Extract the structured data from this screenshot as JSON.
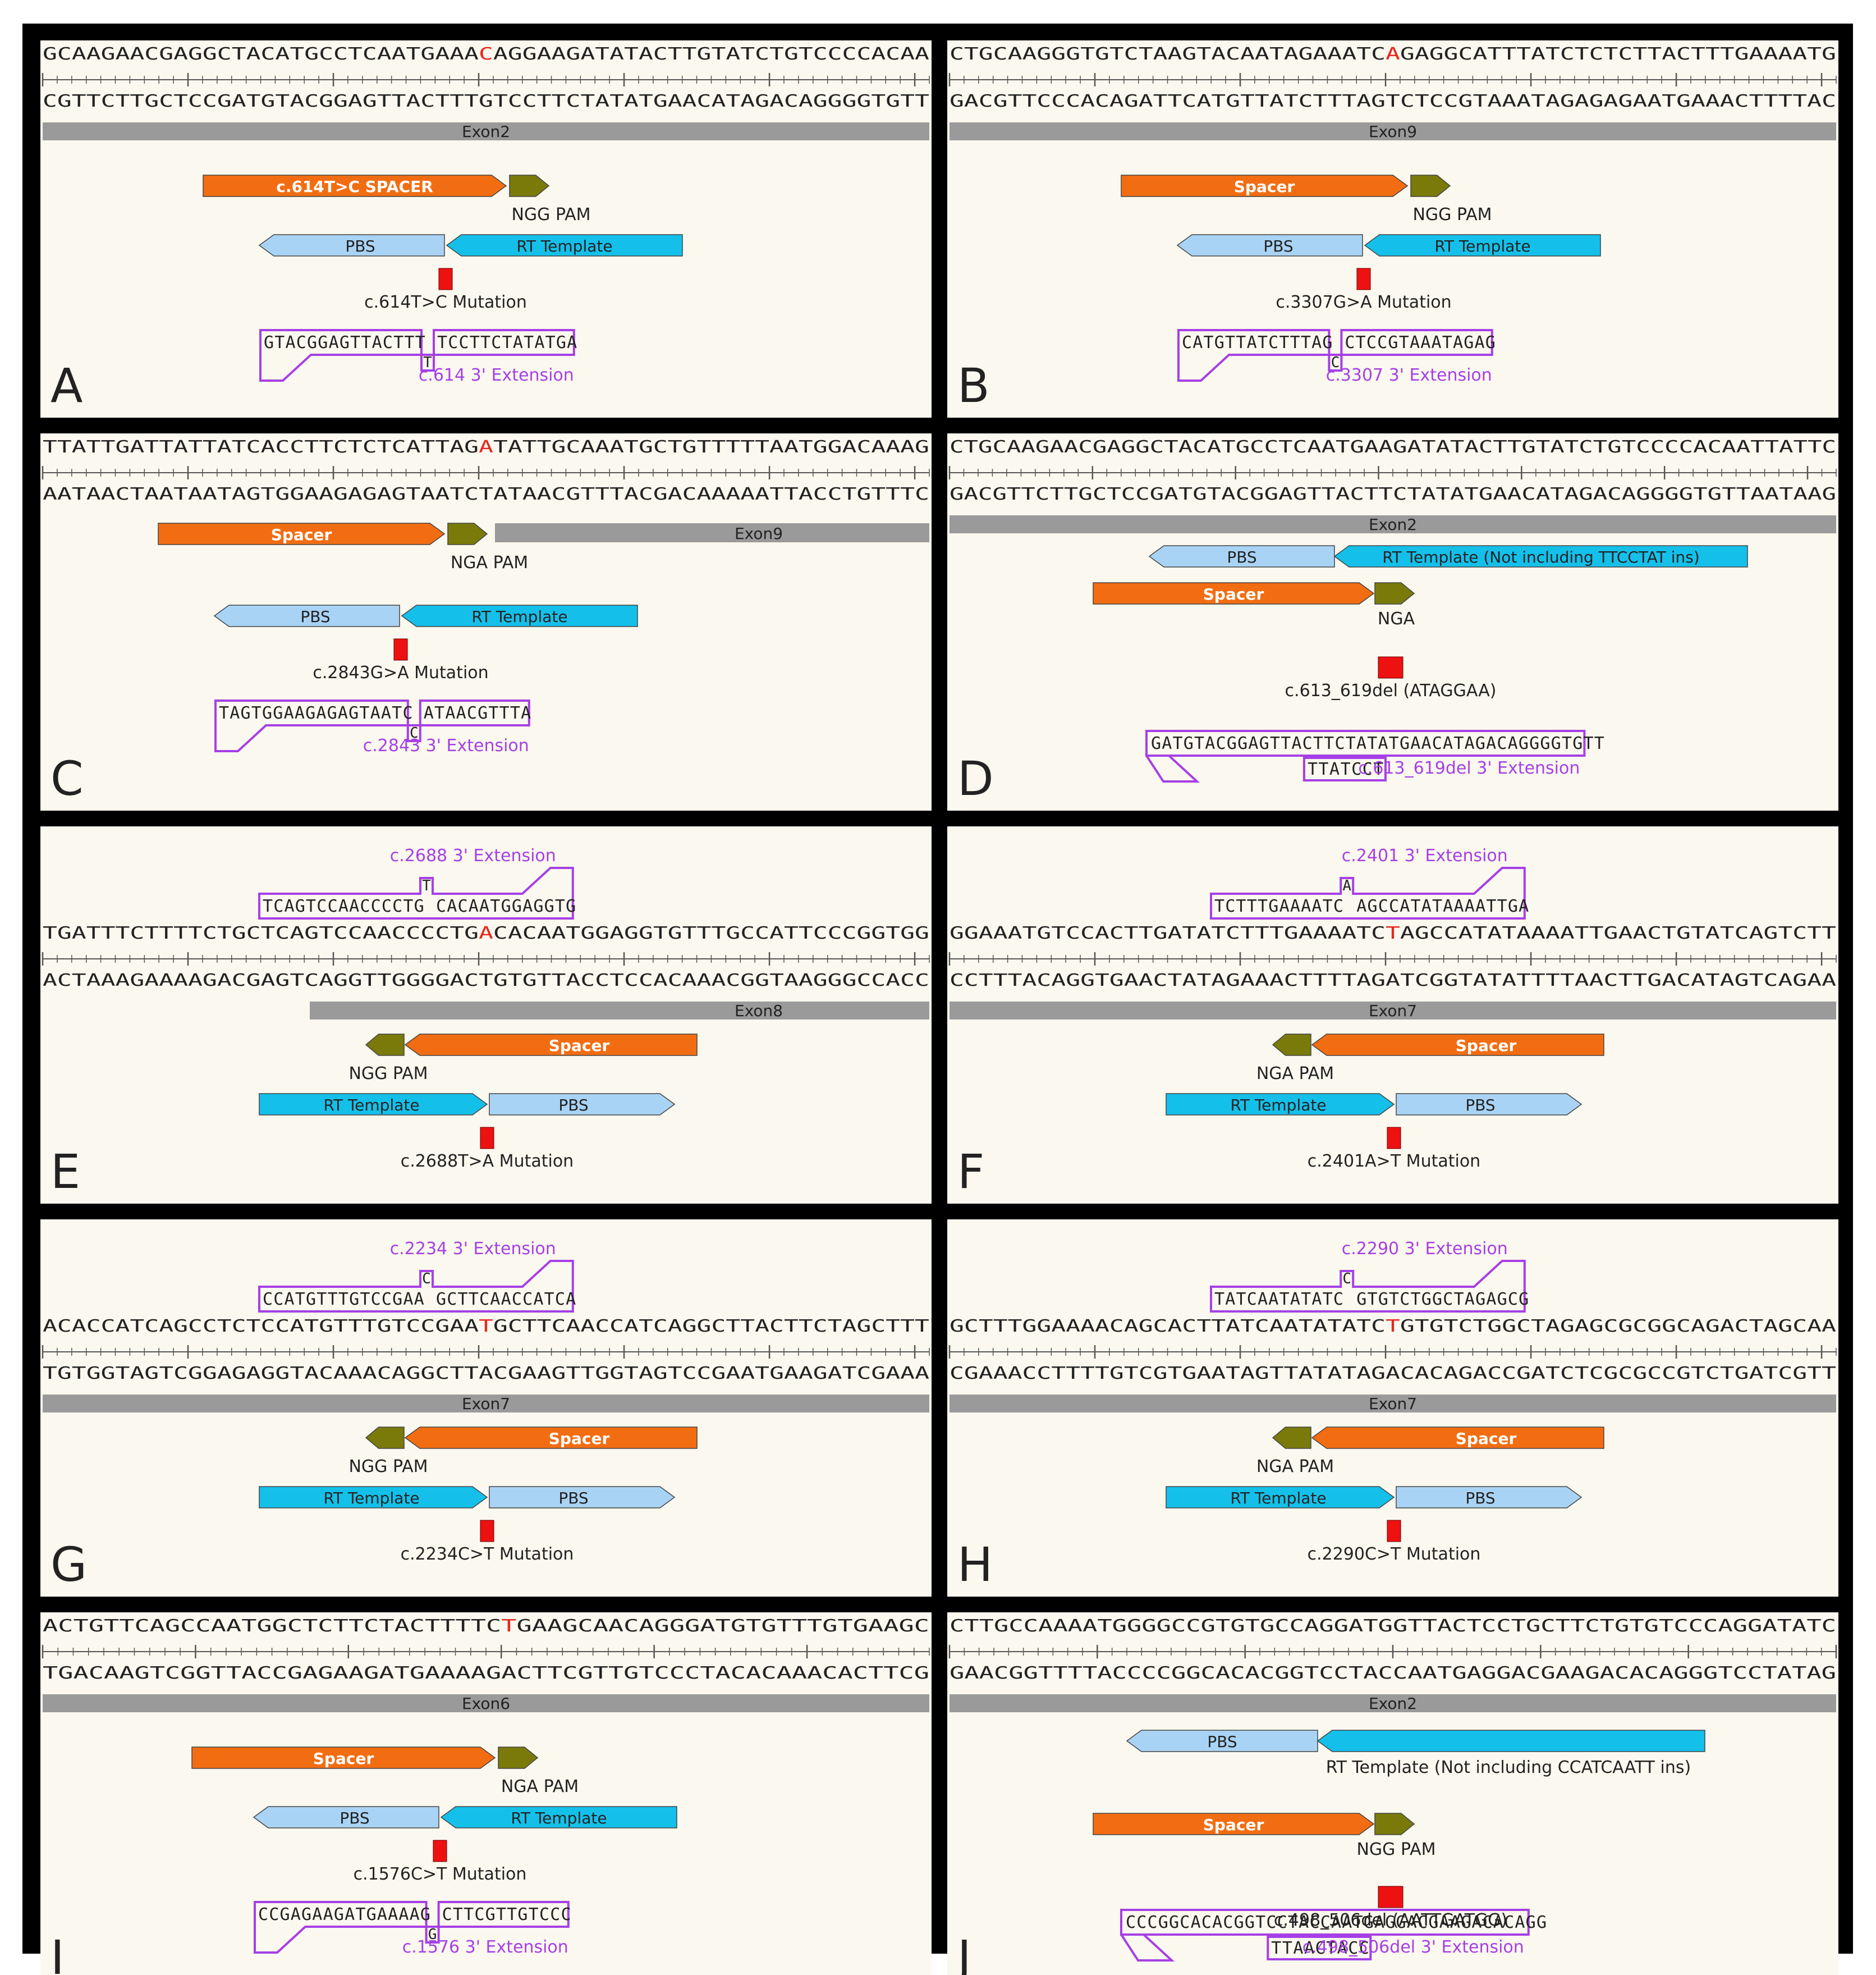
{
  "colors": {
    "frame": "#000000",
    "panel_bg": "#fbf8ef",
    "text": "#222222",
    "mutation_base": "#e8261c",
    "spacer": "#f26d12",
    "pam": "#7a7a0a",
    "pbs": "#a9d3f5",
    "rt": "#14c0ea",
    "exon": "#9a9a9a",
    "extension": "#a640e6",
    "mutation_box": "#ee1111"
  },
  "panels": [
    {
      "letter": "A",
      "top": "GCAAGAACGAGGCTACATGCCTCAATGAAACAGGAAGATATACTTGTATCTGTCCCCACAA",
      "bottom": "CGTTCTTGCTCCGATGTACGGAGTTACTTTGTCCTTCTATATGAACATAGACAGGGGTGTT",
      "mut_index": 30,
      "exon": "Exon2",
      "spacer": "c.614T>C SPACER",
      "pam": "NGG PAM",
      "pbs": "PBS",
      "rt": "RT Template",
      "mutation": "c.614T>C Mutation",
      "ext_left": "GTACGGAGTTACTTT",
      "ext_right": "TCCTTCTATATGA",
      "ext_base": "T",
      "ext_label": "c.614 3' Extension"
    },
    {
      "letter": "B",
      "top": "CTGCAAGGGTGTCTAAGTACAATAGAAATCAGAGGCATTTATCTCTCTTACTTTGAAAATG",
      "bottom": "GACGTTCCCACAGATTCATGTTATCTTTAGTCTCCGTAAATAGAGAGAATGAAACTTTTAC",
      "mut_index": 30,
      "exon": "Exon9",
      "spacer": "Spacer",
      "pam": "NGG PAM",
      "pbs": "PBS",
      "rt": "RT Template",
      "mutation": "c.3307G>A Mutation",
      "ext_left": "CATGTTATCTTTAG",
      "ext_right": "CTCCGTAAATAGAG",
      "ext_base": "C",
      "ext_label": "c.3307 3' Extension"
    },
    {
      "letter": "C",
      "top": "TTATTGATTATTATCACCTTCTCTCATTAGATATTGCAAATGCTGTTTTTAATGGACAAAG",
      "bottom": "AATAACTAATAATAGTGGAAGAGAGTAATCTATAACGTTTACGACAAAAATTACCTGTTTC",
      "mut_index": 30,
      "exon": "Exon9",
      "spacer": "Spacer",
      "pam": "NGA PAM",
      "pbs": "PBS",
      "rt": "RT Template",
      "mutation": "c.2843G>A Mutation",
      "ext_left": "TAGTGGAAGAGAGTAATC",
      "ext_right": "ATAACGTTTA",
      "ext_base": "C",
      "ext_label": "c.2843 3' Extension"
    },
    {
      "letter": "D",
      "top": "CTGCAAGAACGAGGCTACATGCCTCAATGAAGATATACTTGTATCTGTCCCCACAATTATTC",
      "bottom": "GACGTTCTTGCTCCGATGTACGGAGTTACTTCTATATGAACATAGACAGGGGTGTTAATAAG",
      "mut_index": -1,
      "exon": "Exon2",
      "spacer": "Spacer",
      "pam": "NGA",
      "pbs": "PBS",
      "rt": "RT Template (Not including TTCCTAT ins)",
      "mutation": "c.613_619del (ATAGGAA)",
      "ext_seq": "GATGTACGGAGTTACTTCTATATGAACATAGACAGGGGTGTT",
      "ins": "TTATCCT",
      "ext_label": "c.613_619del 3' Extension"
    },
    {
      "letter": "E",
      "top": "TGATTTCTTTTCTGCTCAGTCCAACCCCTGACACAATGGAGGTGTTTGCCATTCCCGGTGG",
      "bottom": "ACTAAAGAAAAGACGAGTCAGGTTGGGGACTGTGTTACCTCCACAAACGGTAAGGGCCACC",
      "mut_index": 30,
      "exon": "Exon8",
      "spacer": "Spacer",
      "pam": "NGG PAM",
      "pbs": "PBS",
      "rt": "RT Template",
      "mutation": "c.2688T>A Mutation",
      "ext_left": "TCAGTCCAACCCCTG",
      "ext_right": "CACAATGGAGGTG",
      "ext_base": "T",
      "ext_label": "c.2688 3' Extension"
    },
    {
      "letter": "F",
      "top": "GGAAATGTCCACTTGATATCTTTGAAAATCTAGCCATATAAAATTGAACTGTATCAGTCTT",
      "bottom": "CCTTTACAGGTGAACTATAGAAACTTTTAGATCGGTATATTTTAACTTGACATAGTCAGAA",
      "mut_index": 30,
      "exon": "Exon7",
      "spacer": "Spacer",
      "pam": "NGA PAM",
      "pbs": "PBS",
      "rt": "RT Template",
      "mutation": "c.2401A>T Mutation",
      "ext_left": "TCTTTGAAAATC",
      "ext_right": "AGCCATATAAAATTGA",
      "ext_base": "A",
      "ext_label": "c.2401 3' Extension"
    },
    {
      "letter": "G",
      "top": "ACACCATCAGCCTCTCCATGTTTGTCCGAATGCTTCAACCATCAGGCTTACTTCTAGCTTT",
      "bottom": "TGTGGTAGTCGGAGAGGTACAAACAGGCTTACGAAGTTGGTAGTCCGAATGAAGATCGAAA",
      "mut_index": 30,
      "exon": "Exon7",
      "spacer": "Spacer",
      "pam": "NGG PAM",
      "pbs": "PBS",
      "rt": "RT Template",
      "mutation": "c.2234C>T Mutation",
      "ext_left": "CCATGTTTGTCCGAA",
      "ext_right": "GCTTCAACCATCA",
      "ext_base": "C",
      "ext_label": "c.2234 3' Extension"
    },
    {
      "letter": "H",
      "top": "GCTTTGGAAAACAGCACTTATCAATATATCTGTGTCTGGCTAGAGCGCGGCAGACTAGCAA",
      "bottom": "CGAAACCTTTTGTCGTGAATAGTTATATAGACACAGACCGATCTCGCGCCGTCTGATCGTT",
      "mut_index": 30,
      "exon": "Exon7",
      "spacer": "Spacer",
      "pam": "NGA PAM",
      "pbs": "PBS",
      "rt": "RT Template",
      "mutation": "c.2290C>T Mutation",
      "ext_left": "TATCAATATATC",
      "ext_right": "GTGTCTGGCTAGAGCG",
      "ext_base": "C",
      "ext_label": "c.2290 3' Extension"
    },
    {
      "letter": "I",
      "top": "ACTGTTCAGCCAATGGCTCTTCTACTTTTCTGAAGCAACAGGGATGTGTTTGTGAAGC",
      "bottom": "TGACAAGTCGGTTACCGAGAAGATGAAAAGACTTCGTTGTCCCTACACAAACACTTCG",
      "mut_index": 30,
      "exon": "Exon6",
      "spacer": "Spacer",
      "pam": "NGA PAM",
      "pbs": "PBS",
      "rt": "RT Template",
      "mutation": "c.1576C>T Mutation",
      "ext_left": "CCGAGAAGATGAAAAG",
      "ext_right": "CTTCGTTGTCCC",
      "ext_base": "G",
      "ext_label": "c.1576 3' Extension"
    },
    {
      "letter": "J",
      "top": "CTTGCCAAAATGGGGCCGTGTGCCAGGATGGTTACTCCTGCTTCTGTGTCCCAGGATATC",
      "bottom": "GAACGGTTTTACCCCGGCACACGGTCCTACCAATGAGGACGAAGACACAGGGTCCTATAG",
      "mut_index": -1,
      "exon": "Exon2",
      "spacer": "Spacer",
      "pam": "NGG PAM",
      "pbs": "PBS",
      "rt": "",
      "rt_below": "RT Template (Not including CCATCAATT ins)",
      "mutation": "c.498_506del (AATTGATGG)",
      "ext_seq": "CCCGGCACACGGTCCTACCAATGAGGACGAAGACACAGG",
      "ins": "TTAACTACC",
      "ext_label": "c.498_506del 3' Extension"
    }
  ]
}
